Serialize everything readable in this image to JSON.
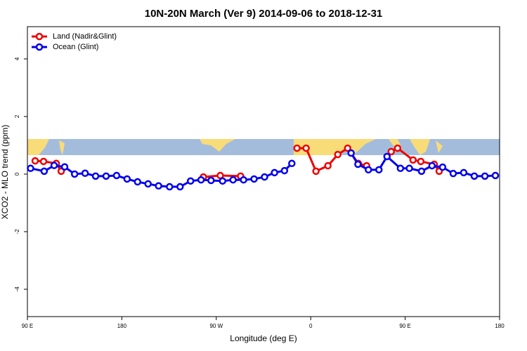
{
  "chart_data": {
    "type": "line",
    "title": "10N-20N March (Ver 9)   2014-09-06 to 2018-12-31",
    "x_label": "Longitude (deg E)",
    "y_label": "XCO2 - MLO trend (ppm)",
    "xlim": [
      90,
      540
    ],
    "ylim": [
      -4.95,
      5.12
    ],
    "xticks": [
      {
        "value": 90,
        "label": "90 E"
      },
      180,
      {
        "value": 270,
        "label": "90 W"
      },
      {
        "value": 360,
        "label": "0"
      },
      {
        "value": 450,
        "label": "90 E"
      },
      {
        "value": 540,
        "label": "180"
      }
    ],
    "yticks": [
      -4,
      -2,
      0,
      2,
      4
    ],
    "legend": "top-left",
    "series": [
      {
        "name": "Land (Nadir&Glint)",
        "color": "#ee0000",
        "x": [
          97.4,
          105.4,
          117.5,
          122.2,
          null,
          257.7,
          273.8,
          293.2,
          null,
          346.9,
          355.6,
          365,
          376.4,
          385.8,
          395.2,
          405.3,
          413.3,
          null,
          436.7,
          442.8,
          457.5,
          464.9,
          477.7,
          482.4
        ],
        "values": [
          0.46,
          0.44,
          0.37,
          0.1,
          null,
          -0.1,
          -0.05,
          -0.07,
          null,
          0.9,
          0.9,
          0.1,
          0.29,
          0.68,
          0.9,
          0.37,
          0.29,
          null,
          0.78,
          0.9,
          0.49,
          0.44,
          0.34,
          0.1
        ]
      },
      {
        "name": "Ocean (Glint)",
        "color": "#0000ee",
        "x": [
          93,
          106,
          115.5,
          125.5,
          135,
          145,
          155,
          165,
          175,
          185,
          195,
          205,
          215,
          225.5,
          235.5,
          245.5,
          255.5,
          265,
          276,
          286,
          296,
          306,
          316,
          325.5,
          335,
          342,
          null,
          398.5,
          405,
          415,
          425,
          432.7,
          445.5,
          454,
          465.6,
          475.6,
          485.7,
          495.8,
          505.8,
          515.9,
          526,
          536
        ],
        "values": [
          0.2,
          0.1,
          0.3,
          0.25,
          0,
          0.03,
          -0.07,
          -0.07,
          -0.05,
          -0.17,
          -0.27,
          -0.34,
          -0.41,
          -0.44,
          -0.44,
          -0.24,
          -0.2,
          -0.22,
          -0.24,
          -0.2,
          -0.2,
          -0.17,
          -0.1,
          0.05,
          0.12,
          0.37,
          null,
          0.73,
          0.34,
          0.15,
          0.15,
          0.61,
          0.2,
          0.2,
          0.1,
          0.29,
          0.24,
          0.02,
          0.05,
          -0.07,
          -0.07,
          -0.05
        ]
      }
    ]
  }
}
